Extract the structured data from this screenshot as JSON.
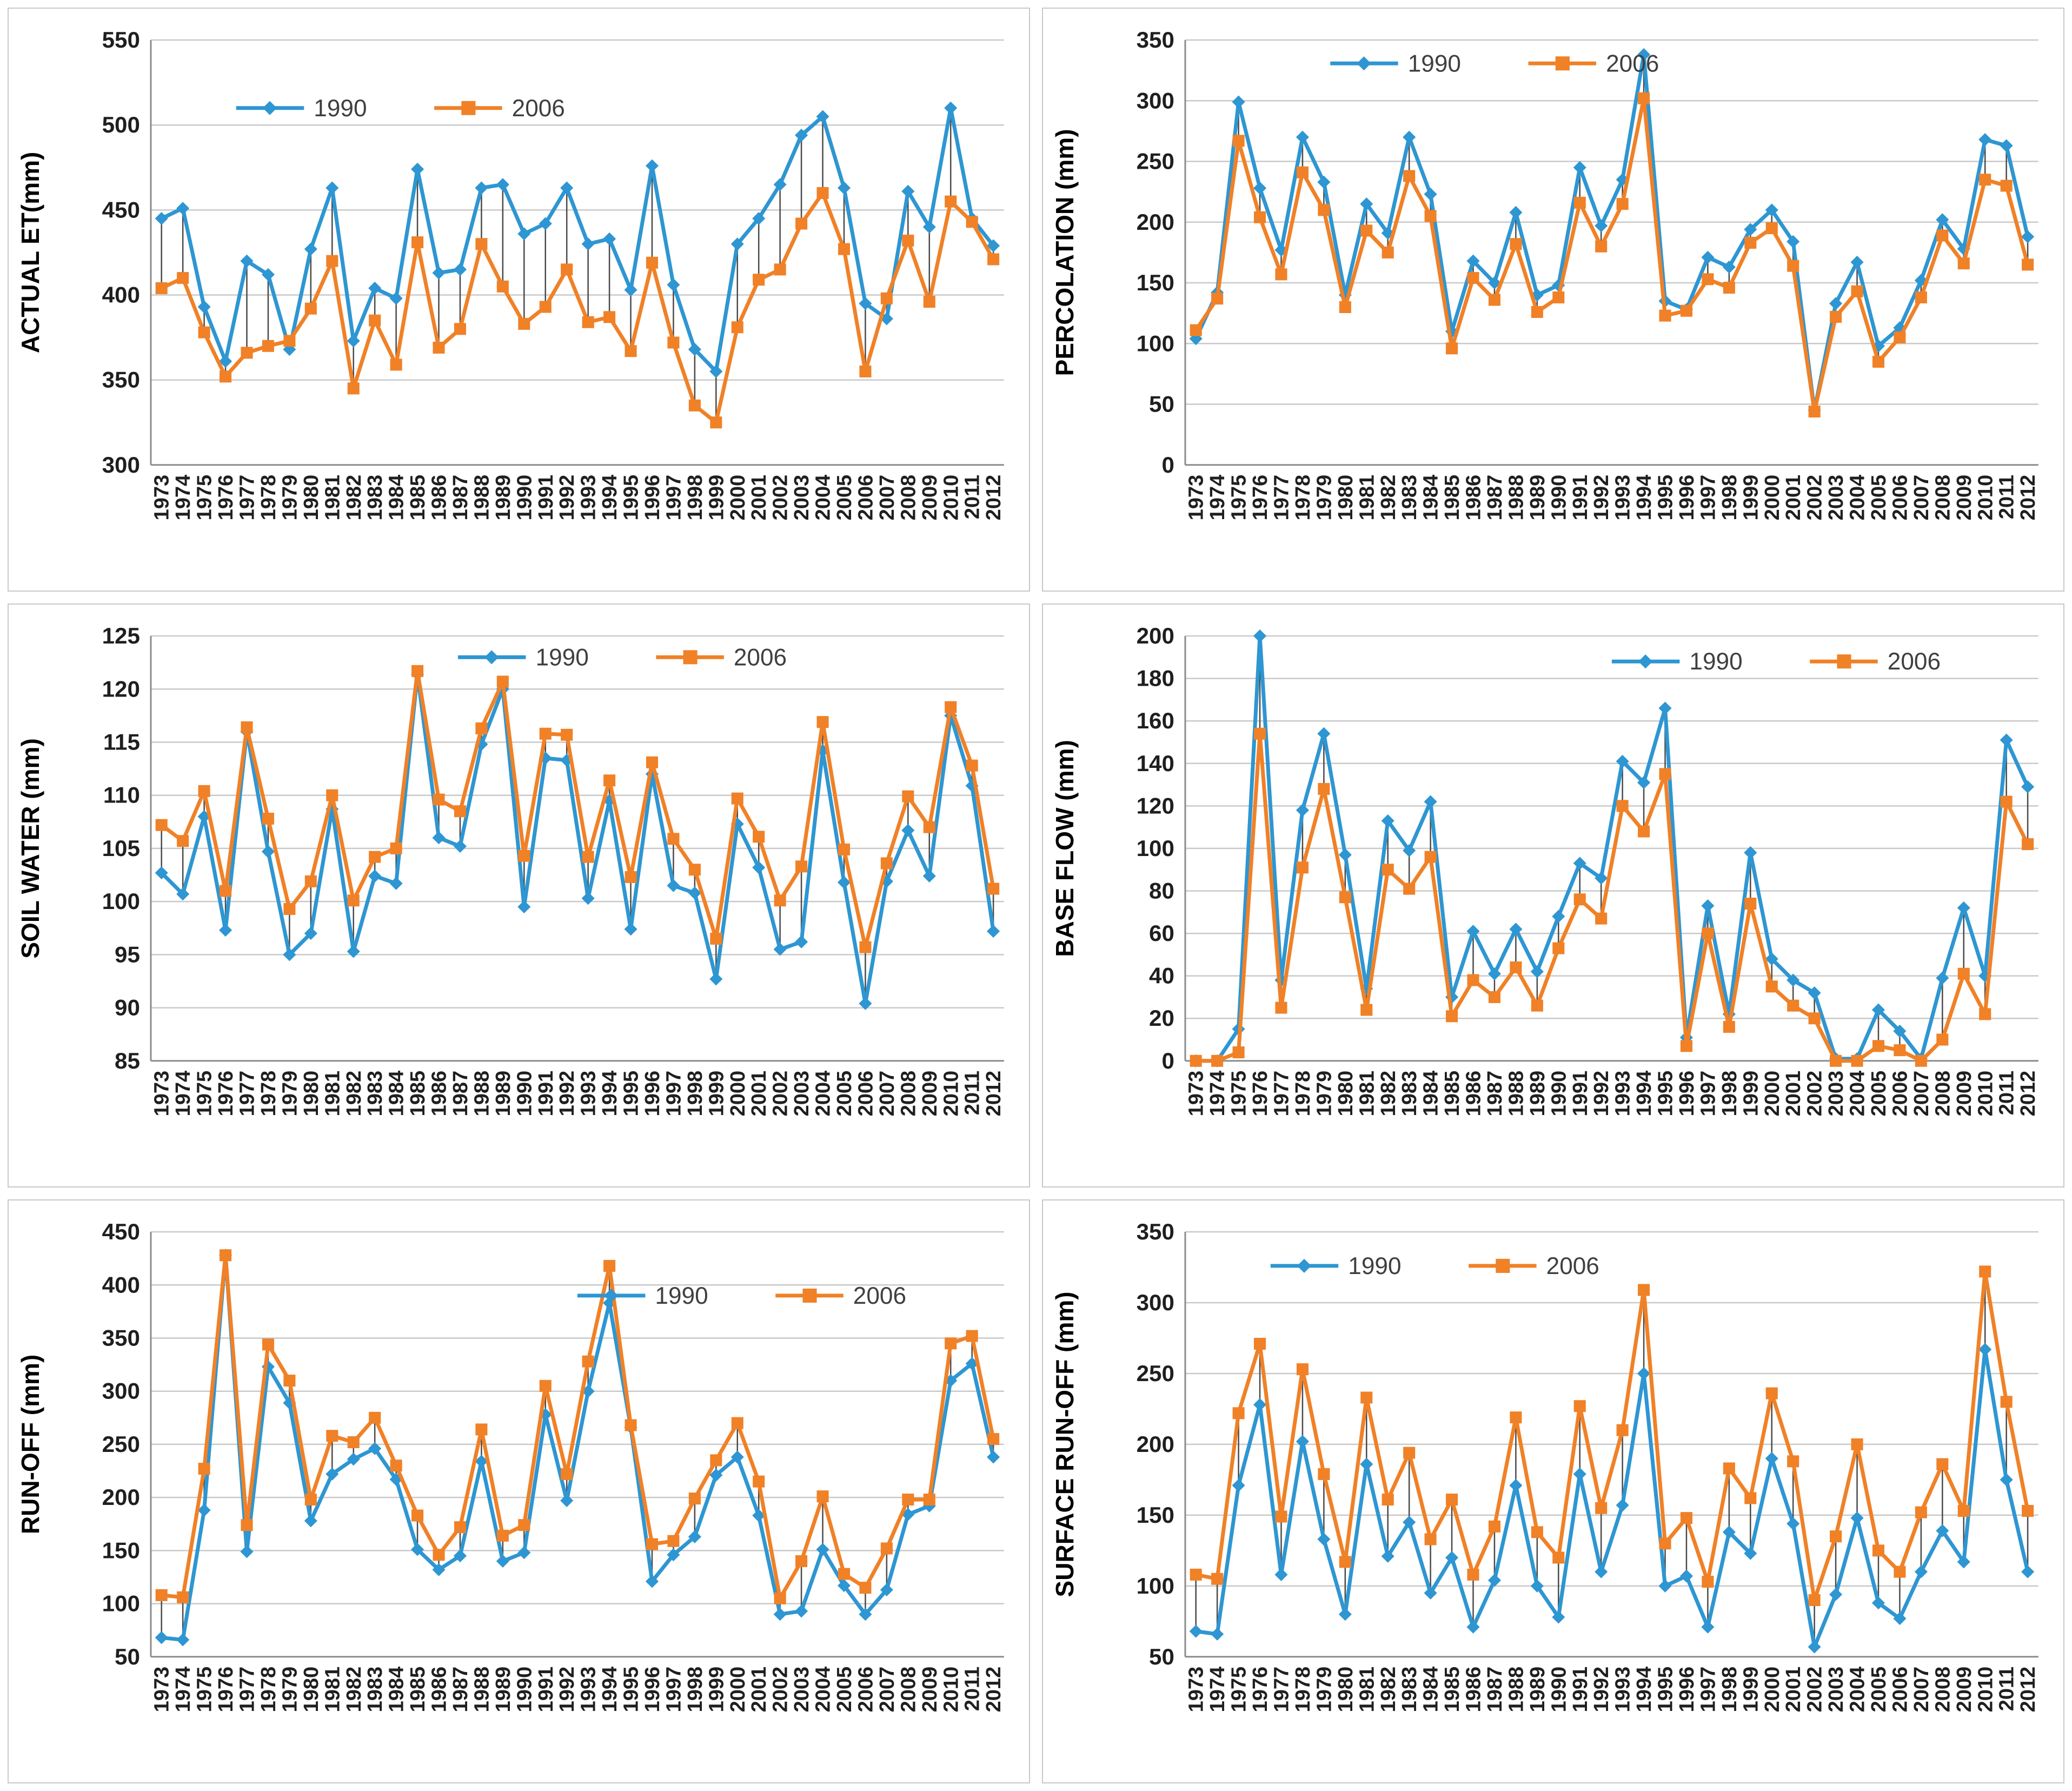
{
  "page": {
    "background": "#ffffff",
    "panel_border": "#c9c9c9"
  },
  "colors": {
    "series_1990": "#2E96D2",
    "series_2006": "#F08127",
    "gridline": "#c9c9c9",
    "axis_line": "#8c8c8c",
    "highlow_line": "#4a4a4a",
    "tick_label": "#1f1f1f",
    "axis_title": "#000000",
    "legend_text": "#3f3f3f"
  },
  "legend": {
    "series_1990_label": "1990",
    "series_2006_label": "2006",
    "marker_1990": "diamond-icon",
    "marker_2006": "square-icon"
  },
  "years": [
    "1973",
    "1974",
    "1975",
    "1976",
    "1977",
    "1978",
    "1979",
    "1980",
    "1981",
    "1982",
    "1983",
    "1984",
    "1985",
    "1986",
    "1987",
    "1988",
    "1989",
    "1990",
    "1991",
    "1992",
    "1993",
    "1994",
    "1995",
    "1996",
    "1997",
    "1998",
    "1999",
    "2000",
    "2001",
    "2002",
    "2003",
    "2004",
    "2005",
    "2006",
    "2007",
    "2008",
    "2009",
    "2010",
    "2011",
    "2012"
  ],
  "chart_data": [
    {
      "id": "actual-et",
      "type": "line",
      "ylabel": "ACTUAL ET(mm)",
      "ymin": 300,
      "ymax": 550,
      "ystep": 50,
      "yticks": [
        300,
        350,
        400,
        450,
        500,
        550
      ],
      "grid": true,
      "legend_position": "inside-top-left",
      "legend_frac": [
        0.1,
        0.16
      ],
      "series": [
        {
          "name": "1990",
          "marker": "diamond",
          "values": [
            445,
            451,
            393,
            361,
            420,
            412,
            368,
            427,
            463,
            373,
            404,
            398,
            474,
            413,
            415,
            463,
            465,
            436,
            442,
            463,
            430,
            433,
            403,
            476,
            406,
            368,
            355,
            430,
            445,
            465,
            494,
            505,
            463,
            395,
            386,
            461,
            440,
            510,
            445,
            429
          ]
        },
        {
          "name": "2006",
          "marker": "square",
          "values": [
            404,
            410,
            378,
            352,
            366,
            370,
            373,
            392,
            420,
            345,
            385,
            359,
            431,
            369,
            380,
            430,
            405,
            383,
            393,
            415,
            384,
            387,
            367,
            419,
            372,
            335,
            325,
            381,
            409,
            415,
            442,
            460,
            427,
            355,
            398,
            432,
            396,
            455,
            443,
            421
          ]
        }
      ]
    },
    {
      "id": "percolation",
      "type": "line",
      "ylabel": "PERCOLATION (mm)",
      "ymin": 0,
      "ymax": 350,
      "ystep": 50,
      "yticks": [
        0,
        50,
        100,
        150,
        200,
        250,
        300,
        350
      ],
      "grid": true,
      "legend_position": "inside-top-left",
      "legend_frac": [
        0.17,
        0.055
      ],
      "series": [
        {
          "name": "1990",
          "marker": "diamond",
          "values": [
            104,
            142,
            299,
            228,
            177,
            270,
            233,
            140,
            215,
            191,
            270,
            223,
            110,
            168,
            150,
            208,
            140,
            148,
            245,
            197,
            235,
            338,
            135,
            128,
            171,
            163,
            194,
            210,
            184,
            45,
            133,
            167,
            98,
            113,
            152,
            202,
            178,
            268,
            263,
            188
          ]
        },
        {
          "name": "2006",
          "marker": "square",
          "values": [
            111,
            137,
            267,
            204,
            157,
            241,
            210,
            130,
            193,
            175,
            238,
            205,
            96,
            154,
            136,
            182,
            126,
            138,
            216,
            180,
            215,
            302,
            123,
            127,
            153,
            146,
            183,
            195,
            164,
            44,
            122,
            143,
            85,
            105,
            138,
            189,
            166,
            235,
            230,
            165
          ]
        }
      ]
    },
    {
      "id": "soil-water",
      "type": "line",
      "ylabel": "SOIL WATER (mm)",
      "ymin": 85,
      "ymax": 125,
      "ystep": 5,
      "yticks": [
        85,
        90,
        95,
        100,
        105,
        110,
        115,
        120,
        125
      ],
      "grid": true,
      "legend_position": "inside-top-center",
      "legend_frac": [
        0.36,
        0.05
      ],
      "series": [
        {
          "name": "1990",
          "marker": "diamond",
          "values": [
            102.7,
            100.7,
            108.0,
            97.3,
            116.0,
            104.7,
            95.0,
            97.0,
            108.7,
            95.3,
            102.4,
            101.7,
            121.4,
            106.0,
            105.2,
            114.8,
            120.0,
            99.5,
            113.5,
            113.3,
            100.3,
            109.5,
            97.4,
            112.0,
            101.5,
            100.8,
            92.7,
            107.3,
            103.2,
            95.5,
            96.2,
            114.2,
            101.8,
            90.4,
            101.9,
            106.7,
            102.4,
            117.5,
            110.9,
            97.2
          ]
        },
        {
          "name": "2006",
          "marker": "square",
          "values": [
            107.2,
            105.7,
            110.4,
            101.0,
            116.4,
            107.8,
            99.3,
            101.9,
            110.0,
            100.1,
            104.2,
            105.0,
            121.7,
            109.6,
            108.5,
            116.3,
            120.7,
            104.3,
            115.8,
            115.7,
            104.2,
            111.4,
            102.3,
            113.1,
            105.9,
            103.0,
            96.5,
            109.7,
            106.1,
            100.1,
            103.3,
            116.9,
            104.9,
            95.7,
            103.6,
            109.9,
            107.0,
            118.3,
            112.8,
            101.2
          ]
        }
      ]
    },
    {
      "id": "base-flow",
      "type": "line",
      "ylabel": "BASE FLOW (mm)",
      "ymin": 0,
      "ymax": 200,
      "ystep": 20,
      "yticks": [
        0,
        20,
        40,
        60,
        80,
        100,
        120,
        140,
        160,
        180,
        200
      ],
      "grid": true,
      "legend_position": "inside-top-right",
      "legend_frac": [
        0.5,
        0.06
      ],
      "series": [
        {
          "name": "1990",
          "marker": "diamond",
          "values": [
            0,
            0,
            15,
            200,
            38,
            118,
            154,
            97,
            34,
            113,
            99,
            122,
            30,
            61,
            41,
            62,
            42,
            68,
            93,
            86,
            141,
            131,
            166,
            11,
            73,
            22,
            98,
            48,
            38,
            32,
            1,
            1,
            24,
            14,
            1,
            39,
            72,
            40,
            151,
            129
          ]
        },
        {
          "name": "2006",
          "marker": "square",
          "values": [
            0,
            0,
            4,
            154,
            25,
            91,
            128,
            77,
            24,
            90,
            81,
            96,
            21,
            38,
            30,
            44,
            26,
            53,
            76,
            67,
            120,
            108,
            135,
            7,
            60,
            16,
            74,
            35,
            26,
            20,
            0,
            0,
            7,
            5,
            0,
            10,
            41,
            22,
            122,
            102
          ]
        }
      ]
    },
    {
      "id": "run-off",
      "type": "line",
      "ylabel": "RUN-OFF (mm)",
      "ymin": 50,
      "ymax": 450,
      "ystep": 50,
      "yticks": [
        50,
        100,
        150,
        200,
        250,
        300,
        350,
        400,
        450
      ],
      "grid": true,
      "legend_position": "inside-middle-right",
      "legend_frac": [
        0.5,
        0.15
      ],
      "series": [
        {
          "name": "1990",
          "marker": "diamond",
          "values": [
            68,
            66,
            188,
            428,
            149,
            323,
            289,
            178,
            222,
            236,
            246,
            217,
            151,
            132,
            145,
            234,
            140,
            148,
            278,
            197,
            300,
            383,
            266,
            121,
            146,
            163,
            221,
            238,
            183,
            90,
            93,
            151,
            117,
            90,
            113,
            184,
            192,
            310,
            326,
            238
          ]
        },
        {
          "name": "2006",
          "marker": "square",
          "values": [
            108,
            106,
            227,
            428,
            174,
            344,
            310,
            198,
            258,
            252,
            275,
            230,
            183,
            146,
            172,
            264,
            164,
            174,
            305,
            222,
            328,
            418,
            268,
            156,
            159,
            199,
            235,
            270,
            215,
            105,
            140,
            201,
            128,
            115,
            152,
            198,
            198,
            345,
            352,
            255
          ]
        }
      ]
    },
    {
      "id": "surface-run-off",
      "type": "line",
      "ylabel": "SURFACE RUN-OFF (mm)",
      "ymin": 50,
      "ymax": 350,
      "ystep": 50,
      "yticks": [
        50,
        100,
        150,
        200,
        250,
        300,
        350
      ],
      "grid": true,
      "legend_position": "inside-top-left",
      "legend_frac": [
        0.1,
        0.08
      ],
      "series": [
        {
          "name": "1990",
          "marker": "diamond",
          "values": [
            68,
            66,
            171,
            228,
            108,
            202,
            133,
            80,
            186,
            121,
            145,
            95,
            120,
            71,
            104,
            171,
            100,
            78,
            179,
            110,
            157,
            250,
            100,
            107,
            71,
            138,
            123,
            190,
            144,
            57,
            94,
            148,
            88,
            77,
            110,
            139,
            117,
            267,
            175,
            110
          ]
        },
        {
          "name": "2006",
          "marker": "square",
          "values": [
            108,
            105,
            222,
            271,
            149,
            253,
            179,
            117,
            233,
            161,
            194,
            133,
            161,
            108,
            142,
            219,
            138,
            120,
            227,
            155,
            210,
            309,
            130,
            148,
            103,
            183,
            162,
            236,
            188,
            90,
            135,
            200,
            125,
            110,
            152,
            186,
            153,
            322,
            230,
            153
          ]
        }
      ]
    }
  ]
}
